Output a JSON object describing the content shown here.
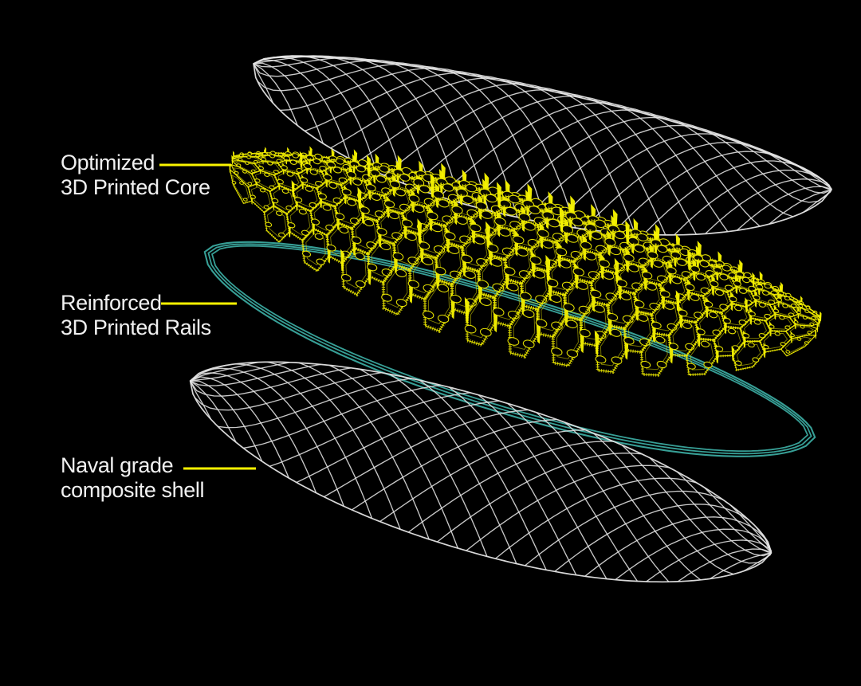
{
  "diagram": {
    "background": "#000000",
    "colors": {
      "shell_wireframe": "#e4e4e4",
      "core_yellow": "#e9e500",
      "core_fin_yellow": "#f6f300",
      "rails_teal": "#3aa89e",
      "leader_yellow": "#fbf500",
      "label_text": "#f1f1f1"
    },
    "labels": [
      {
        "id": "core",
        "line1": "Optimized",
        "line2": "3D Printed Core"
      },
      {
        "id": "rails",
        "line1": "Reinforced",
        "line2": "3D Printed Rails"
      },
      {
        "id": "shell",
        "line1": "Naval grade",
        "line2": "composite shell"
      }
    ],
    "layers": [
      {
        "name": "top composite shell",
        "render": "white wireframe mesh"
      },
      {
        "name": "optimized 3D printed core",
        "render": "yellow honeycomb lattice"
      },
      {
        "name": "reinforced 3D printed rails",
        "render": "teal outline rails"
      },
      {
        "name": "naval grade composite shell",
        "render": "white wireframe mesh"
      }
    ]
  }
}
